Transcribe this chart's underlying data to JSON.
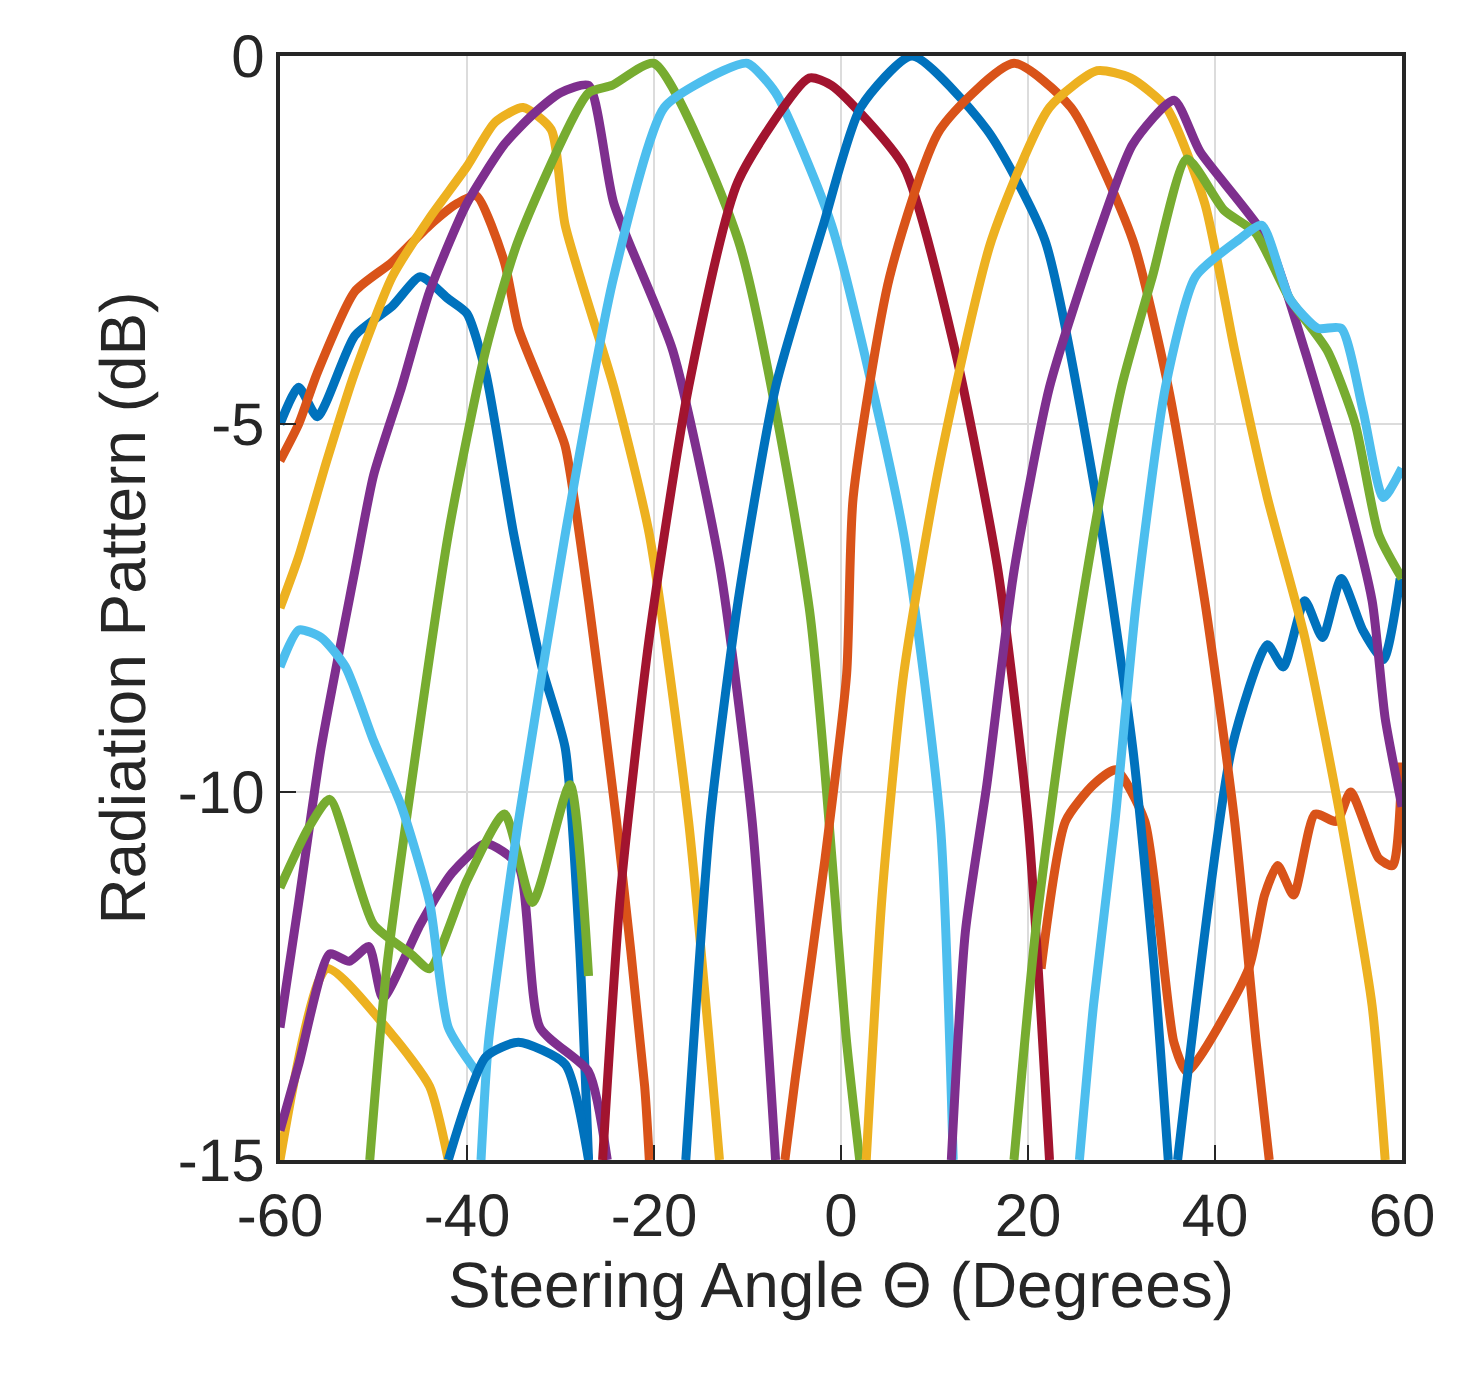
{
  "chart_data": {
    "type": "line",
    "xlabel": "Steering Angle Θ (Degrees)",
    "ylabel": "Radiation Pattern (dB)",
    "xlim": [
      -60,
      60
    ],
    "ylim": [
      -15,
      0
    ],
    "xticks": [
      -60,
      -40,
      -20,
      0,
      20,
      40,
      60
    ],
    "yticks": [
      -15,
      -10,
      -5,
      0
    ],
    "grid": true,
    "marker": "none",
    "line_style": "solid",
    "series": [
      {
        "color": "#0072bd",
        "x": [
          -60,
          -58,
          -56,
          -52,
          -48,
          -45,
          -42,
          -40,
          -38,
          -35,
          -32,
          -29.5,
          -28,
          -27
        ],
        "values": [
          -5.0,
          -4.5,
          -4.9,
          -3.8,
          -3.4,
          -3.0,
          -3.3,
          -3.5,
          -4.3,
          -6.5,
          -8.3,
          -9.4,
          -12,
          -15
        ]
      },
      {
        "color": "#d95319",
        "x": [
          -60,
          -58,
          -56,
          -52,
          -48,
          -44,
          -41,
          -39,
          -36,
          -34.5,
          -31,
          -29.5,
          -27,
          -24,
          -21,
          -20.5
        ],
        "values": [
          -5.5,
          -5.0,
          -4.3,
          -3.2,
          -2.8,
          -2.3,
          -2.0,
          -1.9,
          -2.8,
          -3.7,
          -4.8,
          -5.3,
          -7.4,
          -10.4,
          -14,
          -15
        ]
      },
      {
        "color": "#d95319",
        "x": [
          21.4,
          24,
          27,
          29.4,
          32.5,
          35.6,
          37,
          43.6,
          45.3,
          46.7,
          48.4,
          50.7,
          53,
          54.5,
          57.5,
          59,
          60
        ],
        "values": [
          -12.4,
          -10.4,
          -9.9,
          -9.7,
          -10.4,
          -13.4,
          -13.8,
          -12.4,
          -11.4,
          -11.0,
          -11.4,
          -10.3,
          -10.4,
          -10.0,
          -10.9,
          -11.0,
          -9.6
        ]
      },
      {
        "color": "#edb120",
        "x": [
          -60,
          -55,
          -48,
          -44,
          -42
        ],
        "values": [
          -15,
          -12.4,
          -13.3,
          -14,
          -15
        ]
      },
      {
        "color": "#edb120",
        "x": [
          -60,
          -58,
          -55,
          -52,
          -48,
          -44,
          -40,
          -37,
          -34,
          -31,
          -29.5,
          -24.3,
          -20.5,
          -16.3,
          -13.4,
          -13
        ],
        "values": [
          -7.5,
          -6.8,
          -5.5,
          -4.3,
          -3.0,
          -2.2,
          -1.5,
          -0.9,
          -0.7,
          -1.0,
          -2.3,
          -4.5,
          -6.5,
          -10.4,
          -14.4,
          -15
        ]
      },
      {
        "color": "#7e2f8e",
        "x": [
          -60,
          -58,
          -54.7,
          -52.6,
          -50.5,
          -49,
          -45,
          -41.6,
          -38,
          -34.5,
          -32.2,
          -27,
          -25
        ],
        "values": [
          -14.6,
          -13.7,
          -12.2,
          -12.3,
          -12.1,
          -12.8,
          -11.8,
          -11.1,
          -10.7,
          -11,
          -13.2,
          -13.8,
          -15
        ]
      },
      {
        "color": "#7e2f8e",
        "x": [
          -60,
          -58,
          -55.6,
          -52,
          -50,
          -47,
          -44,
          -40,
          -36,
          -33,
          -30,
          -27,
          -24.3,
          -18,
          -13,
          -9.5,
          -7
        ],
        "values": [
          -13.2,
          -11.5,
          -9.4,
          -7.0,
          -5.7,
          -4.5,
          -3.2,
          -2.0,
          -1.2,
          -0.8,
          -0.5,
          -0.4,
          -2.0,
          -4.0,
          -6.9,
          -10.4,
          -15
        ]
      },
      {
        "color": "#77ac30",
        "x": [
          -60,
          -57,
          -54.7,
          -50,
          -46,
          -44,
          -40,
          -36,
          -33,
          -29,
          -27
        ],
        "values": [
          -11.3,
          -10.5,
          -10.1,
          -11.8,
          -12.2,
          -12.4,
          -11.2,
          -10.3,
          -11.5,
          -9.9,
          -12.5
        ]
      },
      {
        "color": "#77ac30",
        "x": [
          -50.4,
          -48.6,
          -42,
          -38,
          -34.5,
          -27,
          -24.5,
          -20,
          -11,
          -3.4,
          0.6,
          2
        ],
        "values": [
          -15,
          -12.4,
          -6.5,
          -4.0,
          -2.5,
          -0.5,
          -0.4,
          -0.1,
          -2.5,
          -7.5,
          -13.4,
          -15
        ]
      },
      {
        "color": "#4dbeee",
        "x": [
          -60,
          -58,
          -55.6,
          -53,
          -50,
          -47,
          -44,
          -42,
          -39
        ],
        "values": [
          -8.3,
          -7.8,
          -7.9,
          -8.3,
          -9.3,
          -10.2,
          -11.5,
          -13.2,
          -13.8
        ]
      },
      {
        "color": "#4dbeee",
        "x": [
          -38.5,
          -37.7,
          -34.5,
          -29.5,
          -24.3,
          -18.9,
          -12.6,
          -10,
          -7,
          -1,
          6.7,
          10.6,
          12
        ],
        "values": [
          -15,
          -13.4,
          -10.4,
          -6.5,
          -3.0,
          -0.7,
          -0.2,
          -0.1,
          -0.5,
          -2.3,
          -6.5,
          -10.4,
          -15
        ]
      },
      {
        "color": "#a2142f",
        "x": [
          -25.5,
          -23.6,
          -20.5,
          -16.3,
          -11,
          -3.4,
          -1,
          6.7,
          12.2,
          16.8,
          20,
          22.3
        ],
        "values": [
          -15,
          -11.4,
          -7.9,
          -4.5,
          -1.7,
          -0.3,
          -0.4,
          -1.5,
          -4.0,
          -7,
          -10.4,
          -15
        ]
      },
      {
        "color": "#0072bd",
        "x": [
          -42,
          -38,
          -34.5,
          -29.5,
          -27
        ],
        "values": [
          -15,
          -13.6,
          -13.4,
          -13.7,
          -15
        ]
      },
      {
        "color": "#0072bd",
        "x": [
          -16.6,
          -14,
          -11,
          -7,
          -1.9,
          2.1,
          7.6,
          15.6,
          21.8,
          27.3,
          31.2,
          33.5,
          35
        ],
        "values": [
          -15,
          -10.4,
          -7.4,
          -4.5,
          -2.3,
          -0.7,
          0,
          -1,
          -2.5,
          -6,
          -9.4,
          -12.4,
          -15
        ]
      },
      {
        "color": "#0072bd",
        "x": [
          36,
          41.8,
          45.6,
          47.3,
          49.6,
          51.5,
          53.5,
          55.8,
          58,
          59.8
        ],
        "values": [
          -15,
          -9.4,
          -8,
          -8.3,
          -7.4,
          -7.9,
          -7.1,
          -7.8,
          -8.2,
          -7.1
        ]
      },
      {
        "color": "#d95319",
        "x": [
          -6,
          -4.9,
          -1.7,
          0.6,
          1.3,
          5.2,
          10.6,
          18.5,
          24.6,
          31.2,
          35,
          38.9,
          42.1,
          44.4,
          45.8
        ],
        "values": [
          -15,
          -13.9,
          -10.9,
          -8.4,
          -6,
          -3.0,
          -1.0,
          -0.1,
          -0.7,
          -2.5,
          -4.5,
          -7.4,
          -10.4,
          -13.4,
          -15
        ]
      },
      {
        "color": "#edb120",
        "x": [
          2.7,
          4.4,
          6.7,
          10.6,
          16.1,
          22.3,
          27.4,
          31,
          34.8,
          38.9,
          42.1,
          45.6,
          49.6,
          53.5,
          56.8,
          58.2
        ],
        "values": [
          -15,
          -11.4,
          -8.4,
          -5.5,
          -2.5,
          -0.7,
          -0.2,
          -0.3,
          -0.7,
          -2.0,
          -4.0,
          -6,
          -7.9,
          -10.4,
          -12.9,
          -15
        ]
      },
      {
        "color": "#7e2f8e",
        "x": [
          11.8,
          13.3,
          15.6,
          18.5,
          22.3,
          27.3,
          31.2,
          35.6,
          38.4,
          45.6,
          49.6,
          53.5,
          56.8,
          58.2,
          60
        ],
        "values": [
          -15,
          -11.9,
          -9.9,
          -7,
          -4.5,
          -2.5,
          -1.2,
          -0.6,
          -1.3,
          -2.5,
          -4.0,
          -5.7,
          -7.4,
          -9,
          -10.2
        ]
      },
      {
        "color": "#77ac30",
        "x": [
          18.5,
          20.8,
          23.8,
          27,
          30,
          33.3,
          37,
          41,
          44.3,
          48,
          52,
          55,
          57.5,
          60
        ],
        "values": [
          -15,
          -11.9,
          -9,
          -6.5,
          -4.5,
          -3,
          -1.4,
          -2.1,
          -2.4,
          -3.3,
          -4.0,
          -5,
          -6.5,
          -7.1
        ]
      },
      {
        "color": "#4dbeee",
        "x": [
          25.5,
          27,
          29.3,
          31.6,
          34.7,
          37.9,
          42.5,
          45,
          48,
          51,
          53.5,
          55.8,
          58,
          60
        ],
        "values": [
          -15,
          -12.9,
          -10.4,
          -7.4,
          -4.5,
          -3,
          -2.5,
          -2.3,
          -3.3,
          -3.7,
          -3.7,
          -4.8,
          -6.0,
          -5.6
        ]
      }
    ]
  }
}
